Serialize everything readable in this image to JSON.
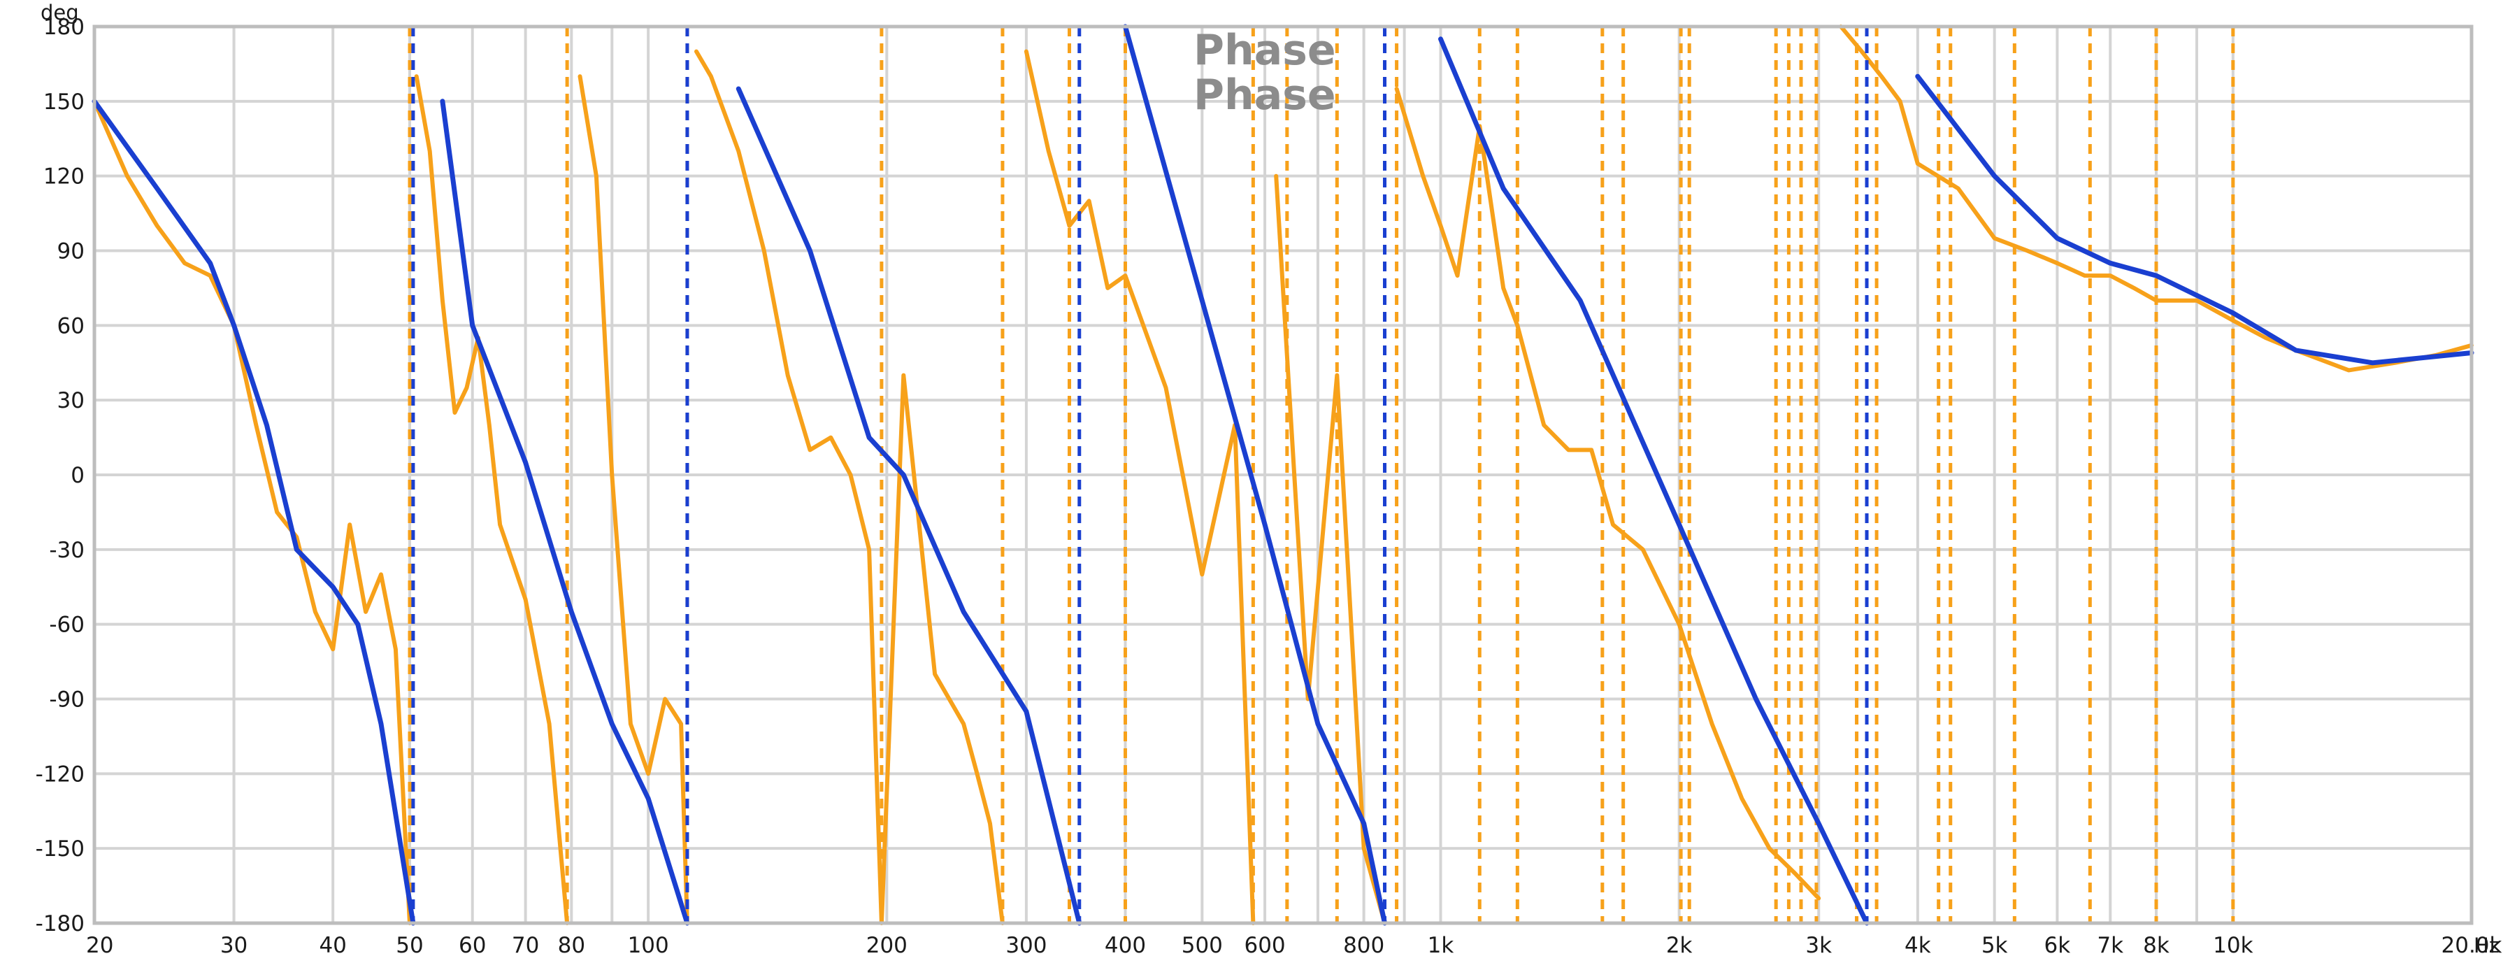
{
  "chart_data": {
    "type": "line",
    "title": "Phase",
    "title_repeat": "Phase",
    "ylabel": "deg",
    "xlabel": "Hz",
    "xscale": "log",
    "xlim": [
      20,
      20000
    ],
    "ylim": [
      -180,
      180
    ],
    "yticks": [
      180,
      150,
      120,
      90,
      60,
      30,
      0,
      -30,
      -60,
      -90,
      -120,
      -150,
      -180
    ],
    "yticks_labels": [
      "180",
      "150",
      "120",
      "90",
      "60",
      "30",
      "0",
      "-30",
      "-60",
      "-90",
      "-120",
      "-150",
      "-180"
    ],
    "xticks": [
      {
        "v": 20,
        "l": "20"
      },
      {
        "v": 30,
        "l": "30"
      },
      {
        "v": 40,
        "l": "40"
      },
      {
        "v": 50,
        "l": "50"
      },
      {
        "v": 60,
        "l": "60"
      },
      {
        "v": 70,
        "l": "70"
      },
      {
        "v": 80,
        "l": "80"
      },
      {
        "v": 100,
        "l": "100"
      },
      {
        "v": 200,
        "l": "200"
      },
      {
        "v": 300,
        "l": "300"
      },
      {
        "v": 400,
        "l": "400"
      },
      {
        "v": 500,
        "l": "500"
      },
      {
        "v": 600,
        "l": "600"
      },
      {
        "v": 800,
        "l": "800"
      },
      {
        "v": 1000,
        "l": "1k"
      },
      {
        "v": 2000,
        "l": "2k"
      },
      {
        "v": 3000,
        "l": "3k"
      },
      {
        "v": 4000,
        "l": "4k"
      },
      {
        "v": 5000,
        "l": "5k"
      },
      {
        "v": 6000,
        "l": "6k"
      },
      {
        "v": 7000,
        "l": "7k"
      },
      {
        "v": 8000,
        "l": "8k"
      },
      {
        "v": 10000,
        "l": "10k"
      },
      {
        "v": 20000,
        "l": "20.0k"
      }
    ],
    "grid": true,
    "legend": "none",
    "colors": {
      "measured": "#f7a11a",
      "smoothed": "#1a3fd0",
      "grid": "#d4d4d4",
      "frame": "#bdbdbd"
    },
    "series": [
      {
        "key": "measured",
        "color": "#f7a11a",
        "wraps": [
          50,
          79,
          112,
          197,
          280,
          340,
          400,
          580,
          640,
          740,
          850,
          880,
          1120,
          1250,
          1600,
          1700,
          2010,
          2060,
          2650,
          2750,
          2850,
          2980,
          3350,
          3550,
          4250,
          4400,
          5300,
          6600,
          8000,
          10000
        ],
        "x": [
          20,
          22,
          24,
          26,
          28,
          30,
          32,
          34,
          36,
          38,
          40,
          42,
          44,
          46,
          48,
          50,
          51,
          53,
          55,
          57,
          59,
          61,
          63,
          65,
          70,
          75,
          79,
          82,
          86,
          90,
          95,
          100,
          105,
          110,
          112,
          115,
          120,
          130,
          140,
          150,
          160,
          170,
          180,
          190,
          197,
          210,
          230,
          250,
          260,
          270,
          280,
          300,
          320,
          340,
          360,
          380,
          400,
          450,
          500,
          550,
          580,
          620,
          680,
          740,
          800,
          850,
          880,
          950,
          1000,
          1050,
          1120,
          1200,
          1250,
          1350,
          1450,
          1550,
          1650,
          1800,
          2000,
          2200,
          2400,
          2600,
          2800,
          3000,
          3200,
          3400,
          3600,
          3800,
          4000,
          4500,
          5000,
          5500,
          6000,
          6500,
          7000,
          7500,
          8000,
          9000,
          10000,
          11000,
          12000,
          14000,
          16000,
          18000,
          20000
        ],
        "y": [
          150,
          120,
          100,
          85,
          80,
          60,
          20,
          -15,
          -25,
          -55,
          -70,
          -20,
          -55,
          -40,
          -70,
          -180,
          160,
          130,
          70,
          25,
          35,
          55,
          20,
          -20,
          -50,
          -100,
          -180,
          160,
          120,
          0,
          -100,
          -120,
          -90,
          -100,
          -180,
          170,
          160,
          130,
          90,
          40,
          10,
          15,
          0,
          -30,
          -180,
          40,
          -80,
          -100,
          -120,
          -140,
          -180,
          170,
          130,
          100,
          110,
          75,
          80,
          35,
          -40,
          20,
          -180,
          120,
          -90,
          40,
          -150,
          -180,
          155,
          120,
          100,
          80,
          140,
          75,
          60,
          20,
          10,
          10,
          -20,
          -30,
          -60,
          -100,
          -130,
          -150,
          -160,
          -170,
          180,
          170,
          160,
          150,
          125,
          115,
          95,
          90,
          85,
          80,
          80,
          75,
          70,
          70,
          62,
          55,
          50,
          42,
          45,
          48,
          52
        ]
      },
      {
        "key": "smoothed",
        "color": "#1a3fd0",
        "wraps": [
          50.5,
          112,
          350,
          850,
          3450
        ],
        "x": [
          20,
          24,
          28,
          30,
          33,
          36,
          40,
          43,
          46,
          50.5,
          55,
          60,
          70,
          80,
          90,
          100,
          112,
          130,
          160,
          190,
          210,
          250,
          300,
          350,
          400,
          500,
          600,
          700,
          800,
          850,
          1000,
          1200,
          1500,
          2000,
          2500,
          3000,
          3450,
          4000,
          5000,
          6000,
          7000,
          8000,
          10000,
          12000,
          15000,
          20000
        ],
        "y": [
          150,
          115,
          85,
          60,
          20,
          -30,
          -45,
          -60,
          -100,
          -180,
          150,
          60,
          5,
          -55,
          -100,
          -130,
          -180,
          155,
          90,
          15,
          0,
          -55,
          -95,
          -180,
          180,
          70,
          -20,
          -100,
          -140,
          -180,
          175,
          115,
          70,
          -20,
          -90,
          -140,
          -180,
          160,
          120,
          95,
          85,
          80,
          65,
          50,
          45,
          49
        ]
      }
    ]
  }
}
